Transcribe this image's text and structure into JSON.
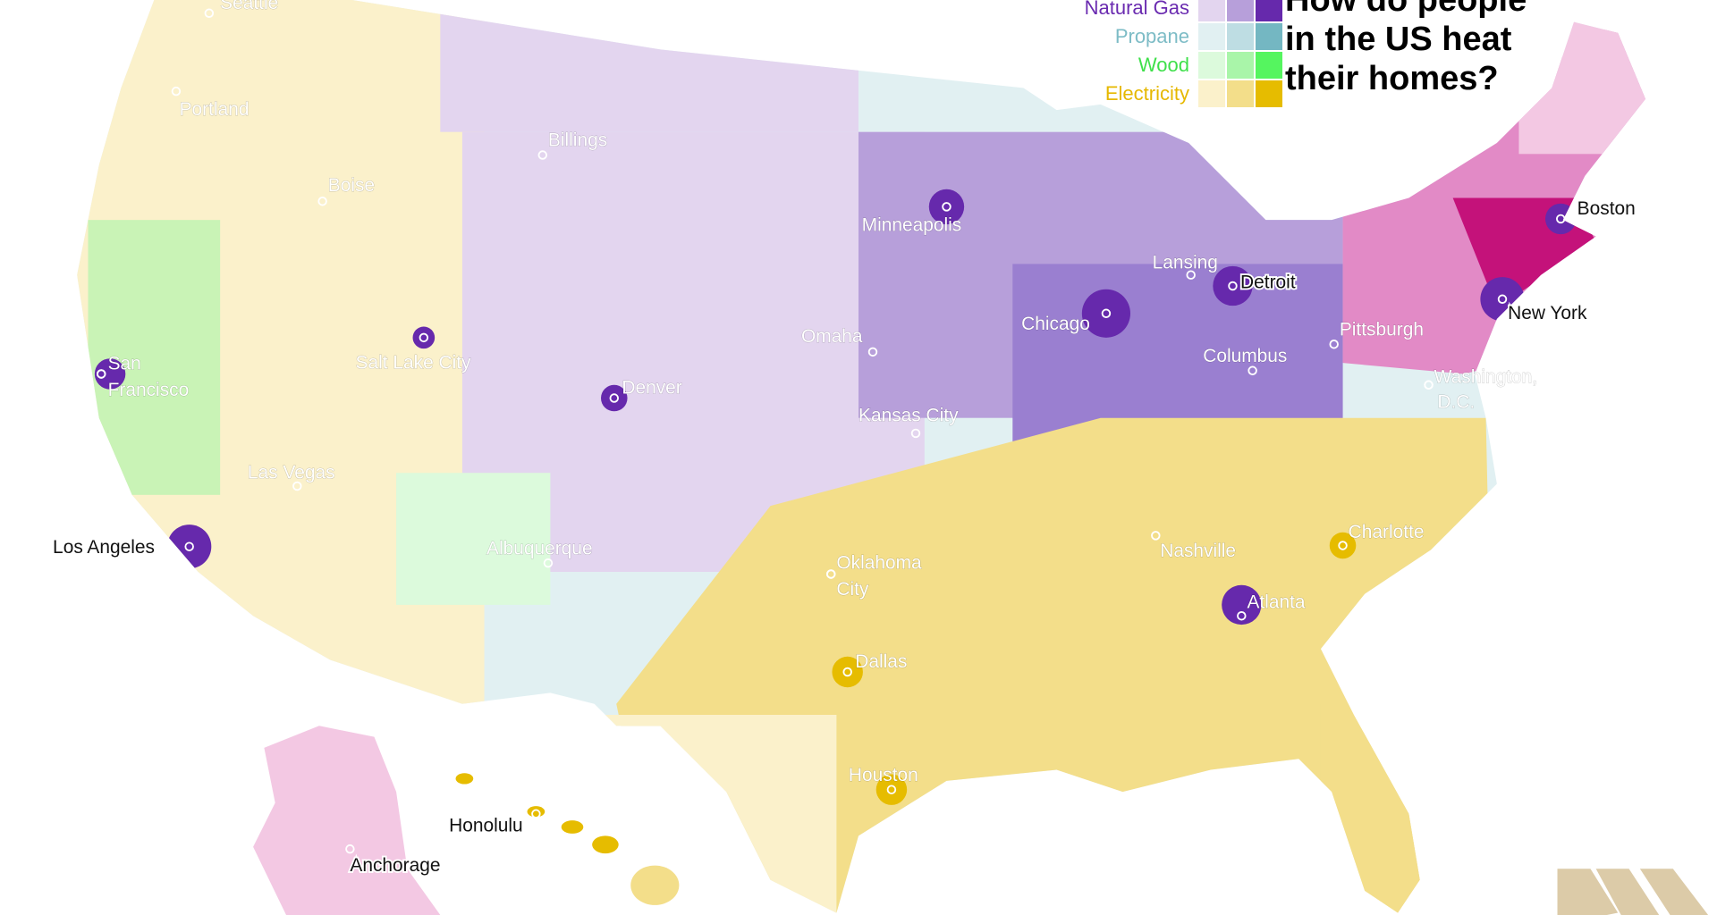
{
  "title": [
    "How do people",
    "in the US heat",
    "their homes?"
  ],
  "legend": [
    {
      "label": "Natural Gas",
      "label_color": "#6a2bb0",
      "colors": [
        "#e3d5ef",
        "#b79fda",
        "#6629ac"
      ]
    },
    {
      "label": "Propane",
      "label_color": "#7dbcc6",
      "colors": [
        "#e1f0f2",
        "#bedde3",
        "#74b7c2"
      ]
    },
    {
      "label": "Wood",
      "label_color": "#3ee04a",
      "colors": [
        "#dcfadc",
        "#a9f5a9",
        "#55f55f"
      ]
    },
    {
      "label": "Electricity",
      "label_color": "#e6b800",
      "colors": [
        "#fbf1cb",
        "#f3de8a",
        "#e6bc00"
      ]
    }
  ],
  "fuel_oil_colors": [
    "#f3c8e3",
    "#e28ac6",
    "#c4127a"
  ],
  "cities": [
    {
      "name": "Seattle",
      "dark": false
    },
    {
      "name": "Portland",
      "dark": false
    },
    {
      "name": "Boise",
      "dark": false
    },
    {
      "name": "Billings",
      "dark": false
    },
    {
      "name": "Minneapolis",
      "dark": false
    },
    {
      "name": "Lansing",
      "dark": false
    },
    {
      "name": "Detroit",
      "dark": true
    },
    {
      "name": "Boston",
      "dark": true
    },
    {
      "name": "New York",
      "dark": true
    },
    {
      "name": "Pittsburgh",
      "dark": false
    },
    {
      "name": "Chicago",
      "dark": false
    },
    {
      "name": "Columbus",
      "dark": false
    },
    {
      "name": "Washington,",
      "dark": false
    },
    {
      "name": "D.C.",
      "dark": false
    },
    {
      "name": "Omaha",
      "dark": false
    },
    {
      "name": "Salt Lake City",
      "dark": false
    },
    {
      "name": "San",
      "dark": false
    },
    {
      "name": "Francisco",
      "dark": false
    },
    {
      "name": "Denver",
      "dark": false
    },
    {
      "name": "Kansas City",
      "dark": false
    },
    {
      "name": "Las Vegas",
      "dark": false
    },
    {
      "name": "Los Angeles",
      "dark": true
    },
    {
      "name": "Albuquerque",
      "dark": false
    },
    {
      "name": "Oklahoma",
      "dark": false
    },
    {
      "name": "City",
      "dark": false
    },
    {
      "name": "Nashville",
      "dark": false
    },
    {
      "name": "Charlotte",
      "dark": false
    },
    {
      "name": "Atlanta",
      "dark": false
    },
    {
      "name": "Dallas",
      "dark": false
    },
    {
      "name": "Houston",
      "dark": false
    },
    {
      "name": "Honolulu",
      "dark": true
    },
    {
      "name": "Anchorage",
      "dark": true
    }
  ],
  "logo_color": "#dccba8"
}
